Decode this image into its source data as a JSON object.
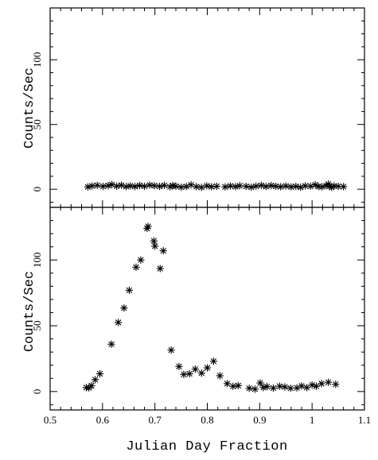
{
  "chart_data": {
    "type": "scatter",
    "marker": "asterisk",
    "xlabel": "Julian Day Fraction",
    "xlim": [
      0.5,
      1.1
    ],
    "xticks": [
      0.5,
      0.6,
      0.7,
      0.8,
      0.9,
      1,
      1.1
    ],
    "xtick_labels": [
      "0.5",
      "0.6",
      "0.7",
      "0.8",
      "0.9",
      "1",
      "1.1"
    ],
    "panels": [
      {
        "id": "top",
        "ylabel": "Counts/Sec",
        "ylim": [
          -14,
          140
        ],
        "yticks": [
          0,
          50,
          100
        ],
        "ytick_labels": [
          "0",
          "50",
          "100"
        ],
        "points": [
          [
            0.572,
            1.8
          ],
          [
            0.58,
            2.5
          ],
          [
            0.59,
            3.0
          ],
          [
            0.601,
            2.2
          ],
          [
            0.611,
            2.8
          ],
          [
            0.618,
            3.6
          ],
          [
            0.627,
            2.4
          ],
          [
            0.636,
            3.1
          ],
          [
            0.645,
            2.0
          ],
          [
            0.653,
            2.6
          ],
          [
            0.662,
            2.1
          ],
          [
            0.671,
            2.9
          ],
          [
            0.68,
            2.3
          ],
          [
            0.69,
            3.2
          ],
          [
            0.699,
            2.7
          ],
          [
            0.709,
            2.2
          ],
          [
            0.718,
            3.0
          ],
          [
            0.729,
            1.9
          ],
          [
            0.734,
            2.8
          ],
          [
            0.74,
            2.4
          ],
          [
            0.75,
            1.6
          ],
          [
            0.76,
            2.1
          ],
          [
            0.769,
            3.4
          ],
          [
            0.779,
            2.0
          ],
          [
            0.789,
            1.4
          ],
          [
            0.799,
            2.6
          ],
          [
            0.808,
            1.9
          ],
          [
            0.818,
            2.3
          ],
          [
            0.834,
            1.8
          ],
          [
            0.844,
            2.5
          ],
          [
            0.854,
            2.0
          ],
          [
            0.862,
            2.7
          ],
          [
            0.874,
            2.2
          ],
          [
            0.884,
            1.6
          ],
          [
            0.893,
            2.4
          ],
          [
            0.903,
            3.0
          ],
          [
            0.912,
            2.1
          ],
          [
            0.922,
            2.8
          ],
          [
            0.931,
            2.3
          ],
          [
            0.94,
            1.9
          ],
          [
            0.95,
            2.5
          ],
          [
            0.96,
            1.8
          ],
          [
            0.969,
            2.2
          ],
          [
            0.978,
            1.5
          ],
          [
            0.987,
            2.6
          ],
          [
            0.997,
            2.3
          ],
          [
            1.006,
            3.4
          ],
          [
            1.012,
            2.1
          ],
          [
            1.019,
            1.9
          ],
          [
            1.027,
            2.7
          ],
          [
            1.031,
            4.0
          ],
          [
            1.034,
            2.4
          ],
          [
            1.037,
            1.5
          ],
          [
            1.042,
            2.6
          ],
          [
            1.05,
            2.2
          ],
          [
            1.06,
            2.0
          ]
        ]
      },
      {
        "id": "bottom",
        "ylabel": "Counts/Sec",
        "ylim": [
          -14,
          140
        ],
        "yticks": [
          0,
          50,
          100
        ],
        "ytick_labels": [
          "0",
          "50",
          "100"
        ],
        "points": [
          [
            0.569,
            3.0
          ],
          [
            0.574,
            2.8
          ],
          [
            0.579,
            4.5
          ],
          [
            0.586,
            9.0
          ],
          [
            0.595,
            13.5
          ],
          [
            0.617,
            36.0
          ],
          [
            0.63,
            52.5
          ],
          [
            0.641,
            63.5
          ],
          [
            0.651,
            77.0
          ],
          [
            0.664,
            94.5
          ],
          [
            0.673,
            100.0
          ],
          [
            0.685,
            124.0
          ],
          [
            0.687,
            125.5
          ],
          [
            0.698,
            114.5
          ],
          [
            0.7,
            110.5
          ],
          [
            0.71,
            93.5
          ],
          [
            0.716,
            107.0
          ],
          [
            0.731,
            31.5
          ],
          [
            0.746,
            19.0
          ],
          [
            0.755,
            13.0
          ],
          [
            0.766,
            13.5
          ],
          [
            0.777,
            17.0
          ],
          [
            0.789,
            14.0
          ],
          [
            0.8,
            18.0
          ],
          [
            0.812,
            23.0
          ],
          [
            0.824,
            12.0
          ],
          [
            0.838,
            6.0
          ],
          [
            0.849,
            4.0
          ],
          [
            0.859,
            4.5
          ],
          [
            0.88,
            2.5
          ],
          [
            0.891,
            1.8
          ],
          [
            0.901,
            6.5
          ],
          [
            0.907,
            3.0
          ],
          [
            0.914,
            3.8
          ],
          [
            0.926,
            2.6
          ],
          [
            0.938,
            4.0
          ],
          [
            0.948,
            3.5
          ],
          [
            0.959,
            2.5
          ],
          [
            0.971,
            2.8
          ],
          [
            0.98,
            4.2
          ],
          [
            0.99,
            3.0
          ],
          [
            1.0,
            5.0
          ],
          [
            1.008,
            4.0
          ],
          [
            1.018,
            6.0
          ],
          [
            1.031,
            7.0
          ],
          [
            1.045,
            5.5
          ]
        ]
      }
    ]
  }
}
